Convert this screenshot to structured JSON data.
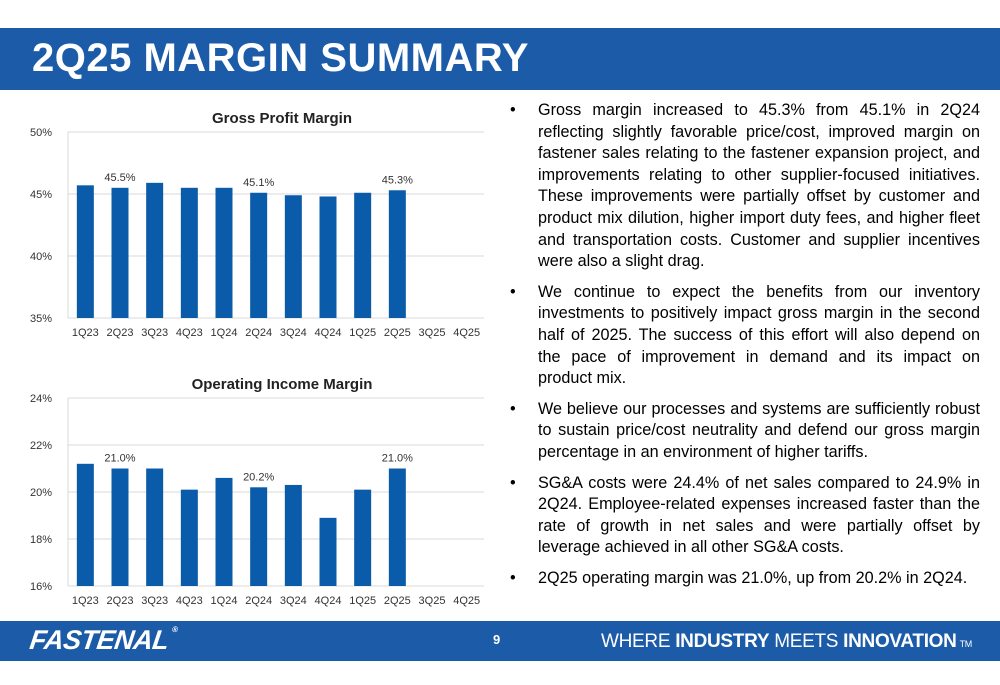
{
  "slide": {
    "title": "2Q25 MARGIN SUMMARY",
    "page_number": "9"
  },
  "footer": {
    "logo": "FASTENAL",
    "logo_mark": "®",
    "tagline": {
      "w1": "WHERE",
      "w2": "INDUSTRY",
      "w3": "MEETS",
      "w4": "INNOVATION",
      "tm": "TM"
    }
  },
  "colors": {
    "brand_blue": "#1b5ba8",
    "bar_blue": "#0b5bab"
  },
  "chart_data": [
    {
      "type": "bar",
      "title": "Gross Profit Margin",
      "categories": [
        "1Q23",
        "2Q23",
        "3Q23",
        "4Q23",
        "1Q24",
        "2Q24",
        "3Q24",
        "4Q24",
        "1Q25",
        "2Q25",
        "3Q25",
        "4Q25"
      ],
      "values": [
        45.7,
        45.5,
        45.9,
        45.5,
        45.5,
        45.1,
        44.9,
        44.8,
        45.1,
        45.3,
        null,
        null
      ],
      "ylim": [
        35,
        50
      ],
      "yticks": [
        "35%",
        "40%",
        "45%",
        "50%"
      ],
      "ytick_values": [
        35,
        40,
        45,
        50
      ],
      "data_labels": [
        {
          "index": 1,
          "text": "45.5%"
        },
        {
          "index": 5,
          "text": "45.1%"
        },
        {
          "index": 9,
          "text": "45.3%"
        }
      ],
      "grid": true,
      "xlabel": "",
      "ylabel": ""
    },
    {
      "type": "bar",
      "title": "Operating Income Margin",
      "categories": [
        "1Q23",
        "2Q23",
        "3Q23",
        "4Q23",
        "1Q24",
        "2Q24",
        "3Q24",
        "4Q24",
        "1Q25",
        "2Q25",
        "3Q25",
        "4Q25"
      ],
      "values": [
        21.2,
        21.0,
        21.0,
        20.1,
        20.6,
        20.2,
        20.3,
        18.9,
        20.1,
        21.0,
        null,
        null
      ],
      "ylim": [
        16,
        24
      ],
      "yticks": [
        "16%",
        "18%",
        "20%",
        "22%",
        "24%"
      ],
      "ytick_values": [
        16,
        18,
        20,
        22,
        24
      ],
      "data_labels": [
        {
          "index": 1,
          "text": "21.0%"
        },
        {
          "index": 5,
          "text": "20.2%"
        },
        {
          "index": 9,
          "text": "21.0%"
        }
      ],
      "grid": true,
      "xlabel": "",
      "ylabel": ""
    }
  ],
  "bullets": [
    "Gross margin increased to 45.3% from 45.1% in 2Q24 reflecting slightly favorable price/cost, improved margin on fastener sales relating to the fastener expansion project, and improvements relating to other supplier-focused initiatives. These improvements were partially offset by customer and product mix dilution, higher import duty fees, and higher fleet and transportation costs. Customer and supplier incentives were also a slight drag.",
    "We continue to expect the benefits from our inventory investments to positively impact gross margin in the second half of 2025. The success of this effort will also depend on the pace of improvement in demand and its impact on product mix.",
    "We believe our processes and systems are sufficiently robust to sustain price/cost neutrality and defend our gross margin percentage in an environment of higher tariffs.",
    "SG&A costs were 24.4% of net sales compared to 24.9% in 2Q24. Employee-related expenses increased faster than the rate of growth in net sales and were partially offset by leverage achieved in all other SG&A costs.",
    "2Q25 operating margin was 21.0%, up from 20.2% in 2Q24."
  ],
  "bullet_symbol": "•"
}
